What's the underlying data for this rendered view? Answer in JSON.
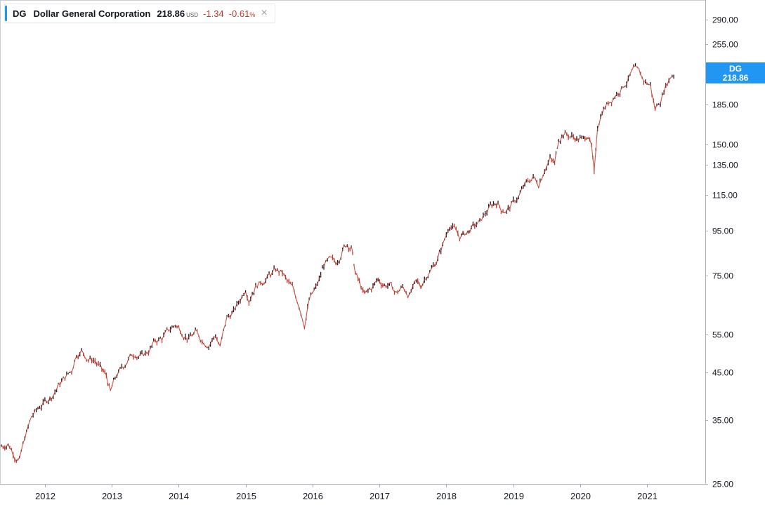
{
  "legend": {
    "symbol": "DG",
    "name": "Dollar General Corporation",
    "price": "218.86",
    "currency": "USD",
    "change": "-1.34",
    "change_pct": "-0.61",
    "pct_symbol": "%",
    "close_glyph": "×",
    "close_icon": "close-icon"
  },
  "price_tag": {
    "symbol": "DG",
    "value": "218.86",
    "color": "#2196f3"
  },
  "colors": {
    "accent": "#2196f3",
    "down": "#c0392b",
    "up": "#131722",
    "negative_text": "#c0392b"
  },
  "chart_data": {
    "type": "line",
    "scale": "log",
    "grid": false,
    "title": "",
    "xlabel": "",
    "ylabel": "",
    "ylim": [
      25,
      310
    ],
    "xlim": [
      2011.35,
      2021.85
    ],
    "y_ticks": [
      290,
      255,
      185,
      150,
      135,
      115,
      95,
      75,
      55,
      45,
      35,
      25
    ],
    "y_tick_labels": [
      "290.00",
      "255.00",
      "185.00",
      "150.00",
      "135.00",
      "115.00",
      "95.00",
      "75.00",
      "55.00",
      "45.00",
      "35.00",
      "25.00"
    ],
    "x_ticks": [
      2012,
      2013,
      2014,
      2015,
      2016,
      2017,
      2018,
      2019,
      2020,
      2021
    ],
    "x_tick_labels": [
      "2012",
      "2013",
      "2014",
      "2015",
      "2016",
      "2017",
      "2018",
      "2019",
      "2020",
      "2021"
    ],
    "series": [
      {
        "name": "DG",
        "points": [
          [
            2011.35,
            30.5
          ],
          [
            2011.45,
            31.0
          ],
          [
            2011.55,
            29.2
          ],
          [
            2011.62,
            28.4
          ],
          [
            2011.7,
            31.8
          ],
          [
            2011.8,
            35.5
          ],
          [
            2011.92,
            37.5
          ],
          [
            2012.0,
            38.5
          ],
          [
            2012.1,
            39.8
          ],
          [
            2012.2,
            42.0
          ],
          [
            2012.3,
            43.8
          ],
          [
            2012.4,
            45.5
          ],
          [
            2012.47,
            49.8
          ],
          [
            2012.55,
            50.5
          ],
          [
            2012.65,
            48.5
          ],
          [
            2012.75,
            48.0
          ],
          [
            2012.85,
            45.5
          ],
          [
            2012.92,
            44.0
          ],
          [
            2012.98,
            40.5
          ],
          [
            2013.05,
            43.5
          ],
          [
            2013.15,
            46.0
          ],
          [
            2013.25,
            48.5
          ],
          [
            2013.35,
            50.0
          ],
          [
            2013.45,
            49.0
          ],
          [
            2013.55,
            50.5
          ],
          [
            2013.65,
            53.0
          ],
          [
            2013.75,
            54.0
          ],
          [
            2013.85,
            56.0
          ],
          [
            2013.95,
            58.0
          ],
          [
            2014.05,
            56.0
          ],
          [
            2014.15,
            54.0
          ],
          [
            2014.25,
            55.5
          ],
          [
            2014.35,
            53.5
          ],
          [
            2014.45,
            52.5
          ],
          [
            2014.55,
            55.0
          ],
          [
            2014.62,
            51.5
          ],
          [
            2014.72,
            60.0
          ],
          [
            2014.82,
            62.0
          ],
          [
            2014.92,
            66.0
          ],
          [
            2015.0,
            70.5
          ],
          [
            2015.05,
            67.0
          ],
          [
            2015.15,
            71.5
          ],
          [
            2015.25,
            73.0
          ],
          [
            2015.35,
            75.0
          ],
          [
            2015.45,
            77.0
          ],
          [
            2015.55,
            76.0
          ],
          [
            2015.62,
            72.5
          ],
          [
            2015.7,
            70.0
          ],
          [
            2015.8,
            64.5
          ],
          [
            2015.88,
            58.5
          ],
          [
            2015.95,
            66.0
          ],
          [
            2016.05,
            70.0
          ],
          [
            2016.1,
            73.0
          ],
          [
            2016.17,
            79.5
          ],
          [
            2016.25,
            81.0
          ],
          [
            2016.35,
            80.0
          ],
          [
            2016.45,
            86.5
          ],
          [
            2016.52,
            89.0
          ],
          [
            2016.58,
            87.5
          ],
          [
            2016.64,
            76.0
          ],
          [
            2016.7,
            72.0
          ],
          [
            2016.78,
            67.5
          ],
          [
            2016.88,
            70.0
          ],
          [
            2016.98,
            73.5
          ],
          [
            2017.05,
            72.0
          ],
          [
            2017.15,
            71.5
          ],
          [
            2017.25,
            68.5
          ],
          [
            2017.35,
            70.5
          ],
          [
            2017.45,
            68.0
          ],
          [
            2017.55,
            72.0
          ],
          [
            2017.62,
            71.0
          ],
          [
            2017.7,
            75.5
          ],
          [
            2017.78,
            78.0
          ],
          [
            2017.85,
            81.0
          ],
          [
            2017.92,
            86.0
          ],
          [
            2018.0,
            93.0
          ],
          [
            2018.05,
            99.0
          ],
          [
            2018.12,
            96.0
          ],
          [
            2018.2,
            92.0
          ],
          [
            2018.3,
            94.0
          ],
          [
            2018.4,
            97.0
          ],
          [
            2018.5,
            99.0
          ],
          [
            2018.58,
            104.0
          ],
          [
            2018.66,
            108.0
          ],
          [
            2018.75,
            111.0
          ],
          [
            2018.82,
            107.0
          ],
          [
            2018.9,
            106.0
          ],
          [
            2019.0,
            110.0
          ],
          [
            2019.08,
            114.0
          ],
          [
            2019.15,
            119.0
          ],
          [
            2019.22,
            123.0
          ],
          [
            2019.3,
            126.0
          ],
          [
            2019.38,
            122.0
          ],
          [
            2019.47,
            133.0
          ],
          [
            2019.55,
            139.0
          ],
          [
            2019.62,
            135.0
          ],
          [
            2019.68,
            155.0
          ],
          [
            2019.75,
            160.0
          ],
          [
            2019.85,
            157.0
          ],
          [
            2019.95,
            155.0
          ],
          [
            2020.05,
            154.0
          ],
          [
            2020.12,
            159.0
          ],
          [
            2020.17,
            148.0
          ],
          [
            2020.21,
            127.0
          ],
          [
            2020.26,
            165.0
          ],
          [
            2020.33,
            180.0
          ],
          [
            2020.42,
            187.0
          ],
          [
            2020.52,
            195.0
          ],
          [
            2020.62,
            203.0
          ],
          [
            2020.72,
            212.0
          ],
          [
            2020.8,
            222.0
          ],
          [
            2020.88,
            218.0
          ],
          [
            2020.95,
            210.0
          ],
          [
            2021.05,
            205.0
          ],
          [
            2021.12,
            181.0
          ],
          [
            2021.2,
            190.0
          ],
          [
            2021.28,
            205.0
          ],
          [
            2021.35,
            215.0
          ],
          [
            2021.4,
            218.86
          ]
        ]
      }
    ]
  }
}
